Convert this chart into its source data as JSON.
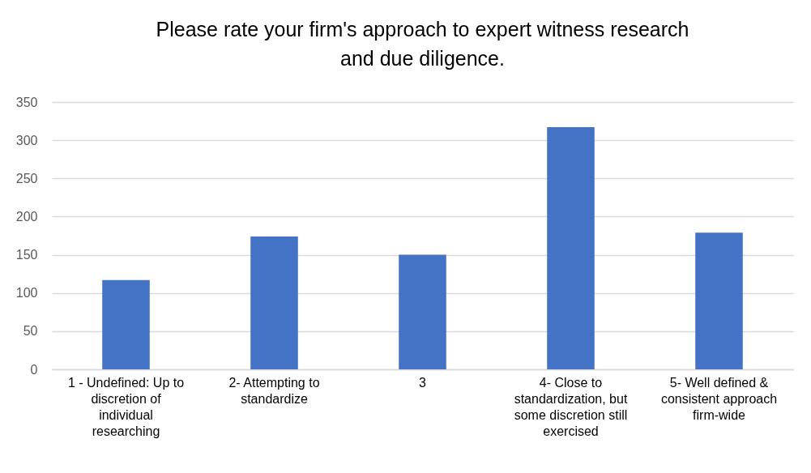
{
  "chart_data": {
    "type": "bar",
    "title": "Please rate your firm's approach to expert witness research and due diligence.",
    "categories": [
      "1 - Undefined: Up to discretion of individual researching",
      "2- Attempting to standardize",
      "3",
      "4- Close to standardization, but some discretion still exercised",
      "5- Well defined & consistent approach firm-wide"
    ],
    "values": [
      117,
      174,
      150,
      317,
      179
    ],
    "color": "#4472c4",
    "ylim": [
      0,
      350
    ],
    "yticks": [
      0,
      50,
      100,
      150,
      200,
      250,
      300,
      350
    ],
    "grid": true
  }
}
